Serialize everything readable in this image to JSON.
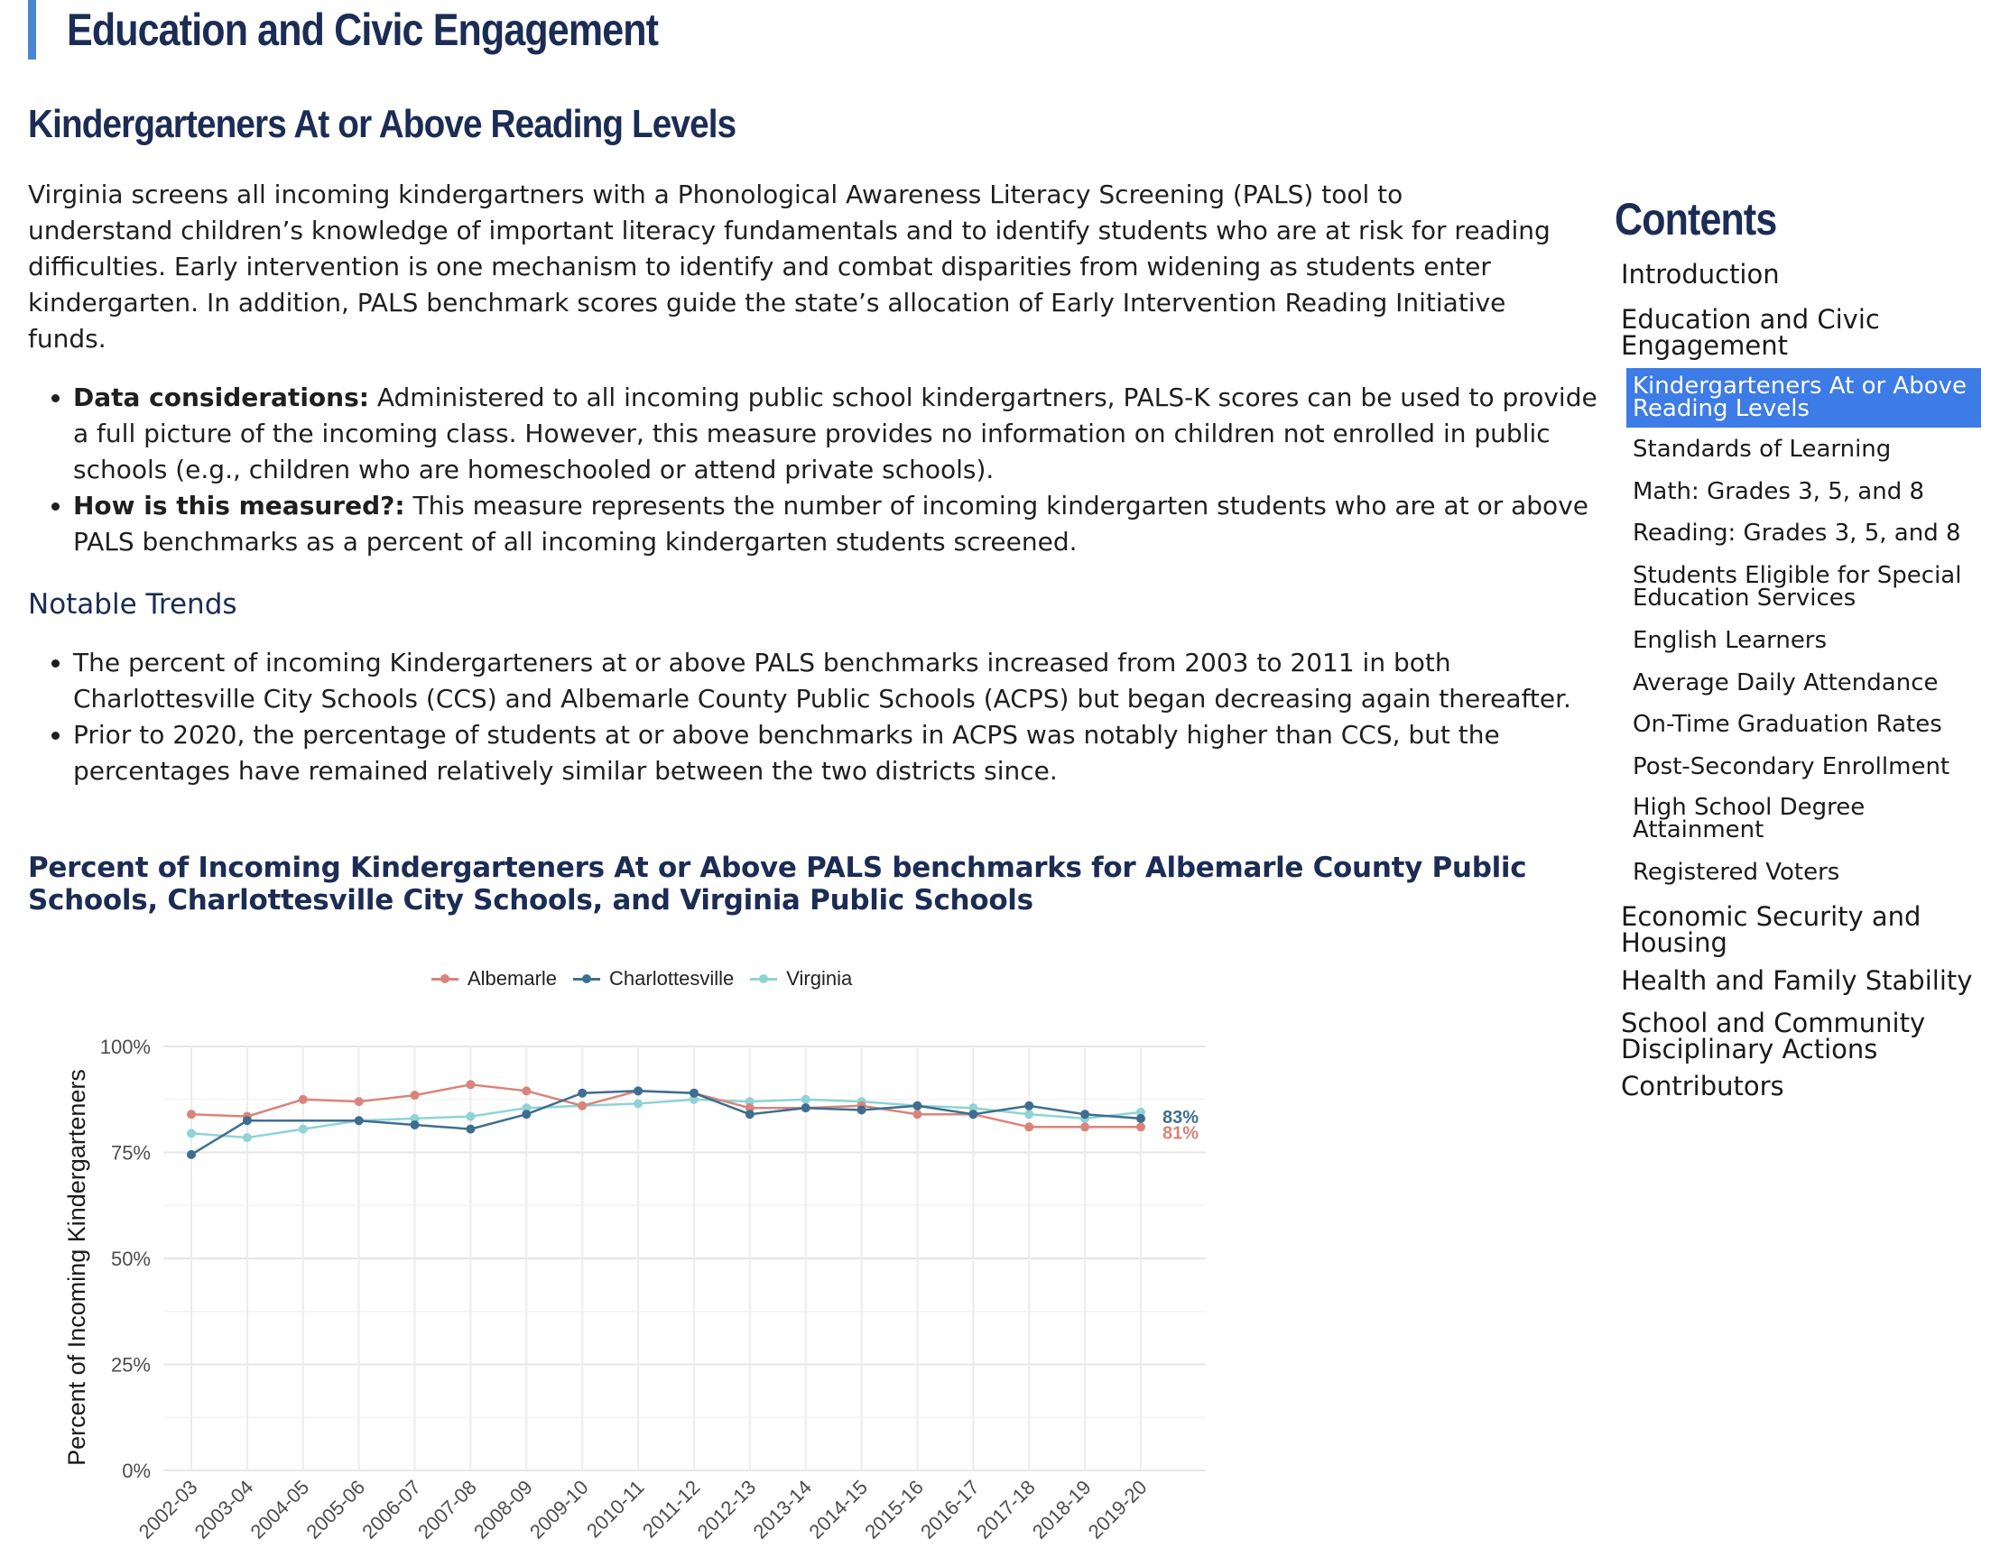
{
  "section": {
    "title": "Education and Civic Engagement"
  },
  "page": {
    "title": "Kindergarteners At or Above Reading Levels",
    "intro": "Virginia screens all incoming kindergartners with a Phonological Awareness Literacy Screening (PALS) tool to understand children’s knowledge of important literacy fundamentals and to identify students who are at risk for reading difficulties. Early intervention is one mechanism to identify and combat disparities from widening as students enter kindergarten. In addition, PALS benchmark scores guide the state’s allocation of Early Intervention Reading Initiative funds.",
    "bullets": [
      {
        "label": "Data considerations:",
        "text": " Administered to all incoming public school kindergartners, PALS-K scores can be used to provide a full picture of the incoming class. However, this measure provides no information on children not enrolled in public schools (e.g., children who are homeschooled or attend private schools)."
      },
      {
        "label": "How is this measured?:",
        "text": " This measure represents the number of incoming kindergarten students who are at or above PALS benchmarks as a percent of all incoming kindergarten students screened."
      }
    ],
    "trends_heading": "Notable Trends",
    "trends": [
      "The percent of incoming Kindergarteners at or above PALS benchmarks increased from 2003 to 2011 in both Charlottesville City Schools (CCS) and Albemarle County Public Schools (ACPS) but began decreasing again thereafter.",
      "Prior to 2020, the percentage of students at or above benchmarks in ACPS was notably higher than CCS, but the percentages have remained relatively similar between the two districts since."
    ],
    "chart_heading": "Percent of Incoming Kindergarteners At or Above PALS benchmarks for Albemarle County Public Schools, Charlottesville City Schools, and Virginia Public Schools"
  },
  "chart_data": {
    "type": "line",
    "title": "",
    "xlabel": "",
    "ylabel": "Percent of Incoming Kindergarteners",
    "ylim": [
      0,
      100
    ],
    "yticks": [
      "0%",
      "25%",
      "50%",
      "75%",
      "100%"
    ],
    "categories": [
      "2002-03",
      "2003-04",
      "2004-05",
      "2005-06",
      "2006-07",
      "2007-08",
      "2008-09",
      "2009-10",
      "2010-11",
      "2011-12",
      "2012-13",
      "2013-14",
      "2014-15",
      "2015-16",
      "2016-17",
      "2017-18",
      "2018-19",
      "2019-20"
    ],
    "series": [
      {
        "name": "Albemarle",
        "color": "#d9847a",
        "values": [
          84,
          83.5,
          87.5,
          87,
          88.5,
          91,
          89.5,
          86,
          89.5,
          89,
          85.5,
          85.5,
          86,
          84,
          84,
          81,
          81,
          81
        ]
      },
      {
        "name": "Charlottesville",
        "color": "#3d6e91",
        "values": [
          74.5,
          82.5,
          null,
          82.5,
          81.5,
          80.5,
          84,
          89,
          89.5,
          89,
          84,
          85.5,
          85,
          86,
          84,
          86,
          84,
          83
        ]
      },
      {
        "name": "Virginia",
        "color": "#8fd3d5",
        "values": [
          79.5,
          78.5,
          80.5,
          82.5,
          83,
          83.5,
          85.5,
          86,
          86.5,
          87.5,
          87,
          87.5,
          87,
          86,
          85.5,
          84,
          83,
          84.5
        ]
      }
    ],
    "end_labels": [
      {
        "series": "Charlottesville",
        "text": "83%",
        "value": 83
      },
      {
        "series": "Albemarle",
        "text": "81%",
        "value": 81
      }
    ],
    "legend": "top",
    "grid": true
  },
  "toc": {
    "title": "Contents",
    "items": [
      {
        "label": "Introduction",
        "level": 1
      },
      {
        "label": "Education and Civic Engagement",
        "level": 1
      },
      {
        "label": "Kindergarteners At or Above Reading Levels",
        "level": 2,
        "active": true
      },
      {
        "label": "Standards of Learning",
        "level": 2
      },
      {
        "label": "Math: Grades 3, 5, and 8",
        "level": 2
      },
      {
        "label": "Reading: Grades 3, 5, and 8",
        "level": 2
      },
      {
        "label": "Students Eligible for Special Education Services",
        "level": 2
      },
      {
        "label": "English Learners",
        "level": 2
      },
      {
        "label": "Average Daily Attendance",
        "level": 2
      },
      {
        "label": "On-Time Graduation Rates",
        "level": 2
      },
      {
        "label": "Post-Secondary Enrollment",
        "level": 2
      },
      {
        "label": "High School Degree Attainment",
        "level": 2
      },
      {
        "label": "Registered Voters",
        "level": 2
      },
      {
        "label": "Economic Security and Housing",
        "level": 1
      },
      {
        "label": "Health and Family Stability",
        "level": 1
      },
      {
        "label": "School and Community Disciplinary Actions",
        "level": 1
      },
      {
        "label": "Contributors",
        "level": 1
      }
    ]
  }
}
